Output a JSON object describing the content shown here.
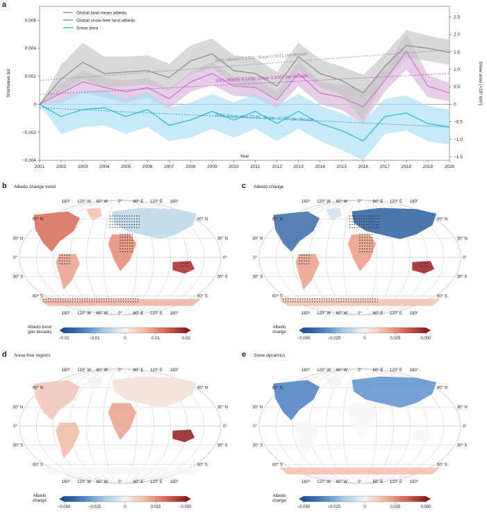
{
  "panel_a": {
    "letter": "a",
    "chart_data": {
      "type": "line",
      "title": "",
      "xlabel": "Year",
      "ylabel": "Shortwave Δα",
      "y2label": "Snow area (×10⁶ km²)",
      "x": [
        2001,
        2002,
        2003,
        2004,
        2005,
        2006,
        2007,
        2008,
        2009,
        2010,
        2011,
        2012,
        2013,
        2014,
        2015,
        2016,
        2017,
        2018,
        2019,
        2020
      ],
      "ylim": [
        -0.004,
        0.007
      ],
      "y2lim": [
        -1.6,
        2.8
      ],
      "yticks": [
        -0.004,
        -0.002,
        0,
        0.002,
        0.004,
        0.006
      ],
      "ytick_labels": [
        "−0.004",
        "−0.002",
        "0",
        "0.002",
        "0.004",
        "0.006"
      ],
      "y2ticks": [
        -1.5,
        -1.0,
        -0.5,
        0,
        0.5,
        1.0,
        1.5,
        2.0,
        2.5
      ],
      "y2tick_labels": [
        "−1.5",
        "−1.0",
        "−0.5",
        "0",
        "0.5",
        "1.0",
        "1.5",
        "2.0",
        "2.5"
      ],
      "legend_position": "top-left",
      "series": [
        {
          "name": "Global land mean albedo",
          "axis": "left",
          "color": "#c57fc8",
          "band_color": "#d7b3d9",
          "values": [
            0,
            0.0008,
            0.0016,
            0.0012,
            0.0009,
            0.0012,
            0.0004,
            0.0016,
            0.0022,
            0.0013,
            0.0012,
            0.0003,
            0.0022,
            0.0008,
            0.0005,
            -0.0002,
            0.0017,
            0.0038,
            0.0013,
            0.0008
          ],
          "lower": [
            0,
            0.0001,
            0.0008,
            0.0005,
            0.0001,
            0.0005,
            -0.0003,
            0.0009,
            0.0014,
            0.0006,
            0.0005,
            -0.0003,
            0.0013,
            0.0,
            -0.0004,
            -0.0014,
            0.0009,
            0.0025,
            0.0005,
            0.0002
          ],
          "upper": [
            0,
            0.0015,
            0.0024,
            0.0019,
            0.0017,
            0.0019,
            0.0011,
            0.0023,
            0.003,
            0.002,
            0.0019,
            0.0009,
            0.0031,
            0.0016,
            0.0014,
            0.001,
            0.0025,
            0.0051,
            0.0021,
            0.0015
          ]
        },
        {
          "name": "Global snow-free land albedo",
          "axis": "left",
          "color": "#8f8f8f",
          "band_color": "#c4c4c4",
          "values": [
            0,
            0.0018,
            0.003,
            0.0022,
            0.0023,
            0.0024,
            0.0019,
            0.0031,
            0.0036,
            0.0024,
            0.0022,
            0.0013,
            0.0034,
            0.0022,
            0.0017,
            0.0008,
            0.0027,
            0.0042,
            0.004,
            0.0037
          ],
          "lower": [
            0,
            0.0009,
            0.0018,
            0.0012,
            0.0013,
            0.0014,
            0.001,
            0.0021,
            0.0026,
            0.0014,
            0.0012,
            0.0004,
            0.0024,
            0.0012,
            0.0007,
            -0.0012,
            0.0018,
            0.0033,
            0.0031,
            0.0028
          ],
          "upper": [
            0,
            0.0028,
            0.0044,
            0.0034,
            0.0034,
            0.0035,
            0.0029,
            0.0042,
            0.0047,
            0.0035,
            0.0033,
            0.0023,
            0.0044,
            0.0032,
            0.0027,
            0.0021,
            0.0036,
            0.0053,
            0.0049,
            0.0046
          ]
        },
        {
          "name": "Snow area",
          "axis": "right",
          "color": "#2bbbe7",
          "band_color": "#a8def2",
          "values": [
            0,
            -0.35,
            -0.15,
            -0.1,
            -0.35,
            -0.15,
            -0.6,
            -0.45,
            -0.2,
            -0.45,
            -0.2,
            -0.55,
            -0.2,
            -0.55,
            -0.75,
            -1.05,
            -0.35,
            -0.25,
            -0.55,
            -0.65
          ],
          "lower": [
            0,
            -0.85,
            -0.65,
            -0.6,
            -0.85,
            -0.65,
            -1.05,
            -0.95,
            -0.7,
            -0.95,
            -0.7,
            -1.05,
            -0.7,
            -1.05,
            -1.3,
            -1.6,
            -0.85,
            -0.75,
            -1.05,
            -1.15
          ],
          "upper": [
            0,
            0.15,
            0.35,
            0.4,
            0.15,
            0.35,
            -0.1,
            0.05,
            0.3,
            0.05,
            0.3,
            -0.05,
            0.3,
            -0.05,
            -0.25,
            -0.5,
            0.15,
            0.25,
            -0.05,
            -0.15
          ]
        }
      ],
      "trend_lines": [
        {
          "axis": "left",
          "color": "#8f8f8f",
          "y_start": 0.0017,
          "y_end": 0.0039,
          "label": "2001 Albedo 0.1702, Slope 0.0011 per decade"
        },
        {
          "axis": "left",
          "color": "#c044c8",
          "y_start": 0.0007,
          "y_end": 0.0022,
          "label": "2001 Albedo 0.1438, Slope 0.0007 per decade"
        },
        {
          "axis": "right",
          "color": "#2a8fba",
          "y_start": -0.1,
          "y_end": -0.65,
          "label": "2001 Snow area 23.86, Slope −0.33× per decade"
        }
      ]
    }
  },
  "maps": {
    "lat_labels": [
      "60° N",
      "30° N",
      "0°",
      "30° S",
      "60° S"
    ],
    "lon_labels": [
      "180°",
      "120° W",
      "60° W",
      "0°",
      "60° E",
      "120° E",
      "180°"
    ],
    "panels": [
      {
        "letter": "b",
        "title": "Albedo change trend",
        "colorbar_label_1": "Albedo trend",
        "colorbar_label_2": "(per decade)",
        "ticks": [
          "−0.02",
          "−0.01",
          "0",
          "0.01",
          "0.02"
        ],
        "range": [
          -0.02,
          0.02
        ],
        "stippled": true
      },
      {
        "letter": "c",
        "title": "Albedo change",
        "colorbar_label_1": "Albedo",
        "colorbar_label_2": "change",
        "ticks": [
          "−0.050",
          "−0.025",
          "0",
          "0.025",
          "0.050"
        ],
        "range": [
          -0.05,
          0.05
        ],
        "stippled": true
      },
      {
        "letter": "d",
        "title": "Snow-free regions",
        "colorbar_label_1": "Albedo",
        "colorbar_label_2": "change",
        "ticks": [
          "−0.050",
          "−0.025",
          "0",
          "0.025",
          "0.050"
        ],
        "range": [
          -0.05,
          0.05
        ],
        "stippled": false
      },
      {
        "letter": "e",
        "title": "Snow dynamics",
        "colorbar_label_1": "Albedo",
        "colorbar_label_2": "change",
        "ticks": [
          "−0.050",
          "−0.025",
          "0",
          "0.025",
          "0.050"
        ],
        "range": [
          -0.05,
          0.05
        ],
        "stippled": false
      }
    ],
    "colormap": [
      "#1f4e8c",
      "#4a88c2",
      "#a9cde5",
      "#f2f2f2",
      "#f3b79f",
      "#d8654f",
      "#8e1a1d"
    ]
  }
}
